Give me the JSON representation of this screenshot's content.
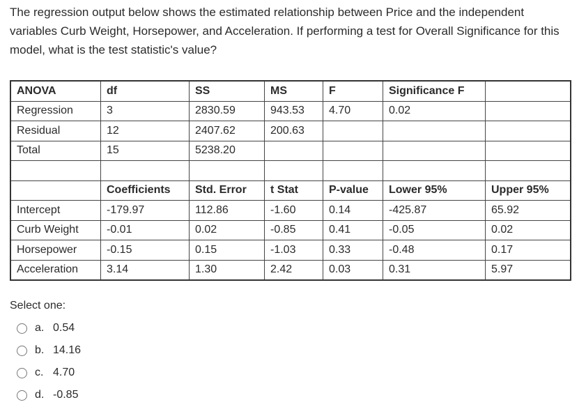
{
  "question": "The regression output below shows the estimated relationship between Price and the independent variables Curb Weight, Horsepower, and Acceleration. If performing a test for Overall Significance for this model, what is the test statistic's value?",
  "table": {
    "rows": [
      [
        "ANOVA",
        "df",
        "SS",
        "MS",
        "F",
        "Significance F",
        null
      ],
      [
        "Regression",
        "3",
        "2830.59",
        "943.53",
        "4.70",
        "0.02",
        null
      ],
      [
        "Residual",
        "12",
        "2407.62",
        "200.63",
        null,
        null,
        null
      ],
      [
        "Total",
        "15",
        "5238.20",
        null,
        null,
        null,
        null
      ],
      [
        null,
        null,
        null,
        null,
        null,
        null,
        null
      ],
      [
        null,
        "Coefficients",
        "Std. Error",
        "t Stat",
        "P-value",
        "Lower 95%",
        "Upper 95%"
      ],
      [
        "Intercept",
        "-179.97",
        "112.86",
        "-1.60",
        "0.14",
        "-425.87",
        "65.92"
      ],
      [
        "Curb Weight",
        "-0.01",
        "0.02",
        "-0.85",
        "0.41",
        "-0.05",
        "0.02"
      ],
      [
        "Horsepower",
        "-0.15",
        "0.15",
        "-1.03",
        "0.33",
        "-0.48",
        "0.17"
      ],
      [
        "Acceleration",
        "3.14",
        "1.30",
        "2.42",
        "0.03",
        "0.31",
        "5.97"
      ]
    ]
  },
  "prompt": "Select one:",
  "options": [
    {
      "letter": "a.",
      "text": "0.54"
    },
    {
      "letter": "b.",
      "text": "14.16"
    },
    {
      "letter": "c.",
      "text": "4.70"
    },
    {
      "letter": "d.",
      "text": "-0.85"
    }
  ]
}
